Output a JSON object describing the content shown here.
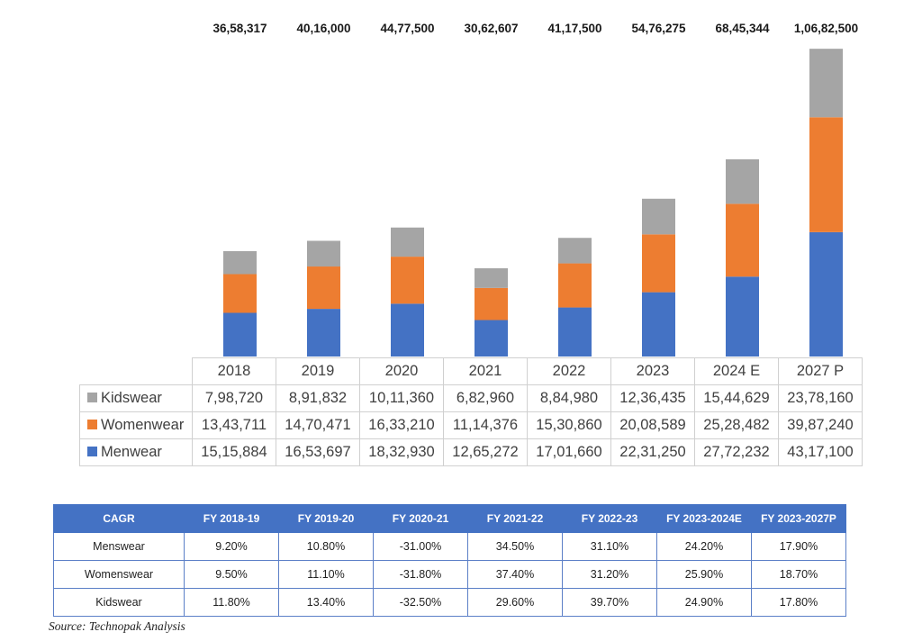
{
  "chart_data": {
    "type": "bar",
    "stacked": true,
    "categories": [
      "2018",
      "2019",
      "2020",
      "2021",
      "2022",
      "2023",
      "2024 E",
      "2027 P"
    ],
    "totals": [
      "36,58,317",
      "40,16,000",
      "44,77,500",
      "30,62,607",
      "41,17,500",
      "54,76,275",
      "68,45,344",
      "1,06,82,500"
    ],
    "series": [
      {
        "name": "Kidswear",
        "color": "#a5a5a5",
        "values": [
          798720,
          891832,
          1011360,
          682960,
          884980,
          1236435,
          1544629,
          2378160
        ],
        "labels": [
          "7,98,720",
          "8,91,832",
          "10,11,360",
          "6,82,960",
          "8,84,980",
          "12,36,435",
          "15,44,629",
          "23,78,160"
        ]
      },
      {
        "name": "Womenwear",
        "color": "#ed7d31",
        "values": [
          1343711,
          1470471,
          1633210,
          1114376,
          1530860,
          2008589,
          2528482,
          3987240
        ],
        "labels": [
          "13,43,711",
          "14,70,471",
          "16,33,210",
          "11,14,376",
          "15,30,860",
          "20,08,589",
          "25,28,482",
          "39,87,240"
        ]
      },
      {
        "name": "Menwear",
        "color": "#4472c4",
        "values": [
          1515884,
          1653697,
          1832930,
          1265272,
          1701660,
          2231250,
          2772232,
          4317100
        ],
        "labels": [
          "15,15,884",
          "16,53,697",
          "18,32,930",
          "12,65,272",
          "17,01,660",
          "22,31,250",
          "27,72,232",
          "43,17,100"
        ]
      }
    ],
    "stack_order_bottom_to_top": [
      "Menwear",
      "Womenwear",
      "Kidswear"
    ],
    "ylim": [
      0,
      11000000
    ],
    "title": "",
    "xlabel": "",
    "ylabel": ""
  },
  "cagr": {
    "headers": [
      "CAGR",
      "FY 2018-19",
      "FY 2019-20",
      "FY 2020-21",
      "FY 2021-22",
      "FY 2022-23",
      "FY 2023-2024E",
      "FY 2023-2027P"
    ],
    "rows": [
      {
        "label": "Menswear",
        "values": [
          "9.20%",
          "10.80%",
          "-31.00%",
          "34.50%",
          "31.10%",
          "24.20%",
          "17.90%"
        ]
      },
      {
        "label": "Womenswear",
        "values": [
          "9.50%",
          "11.10%",
          "-31.80%",
          "37.40%",
          "31.20%",
          "25.90%",
          "18.70%"
        ]
      },
      {
        "label": "Kidswear",
        "values": [
          "11.80%",
          "13.40%",
          "-32.50%",
          "29.60%",
          "39.70%",
          "24.90%",
          "17.80%"
        ]
      }
    ]
  },
  "source": "Source: Technopak Analysis"
}
